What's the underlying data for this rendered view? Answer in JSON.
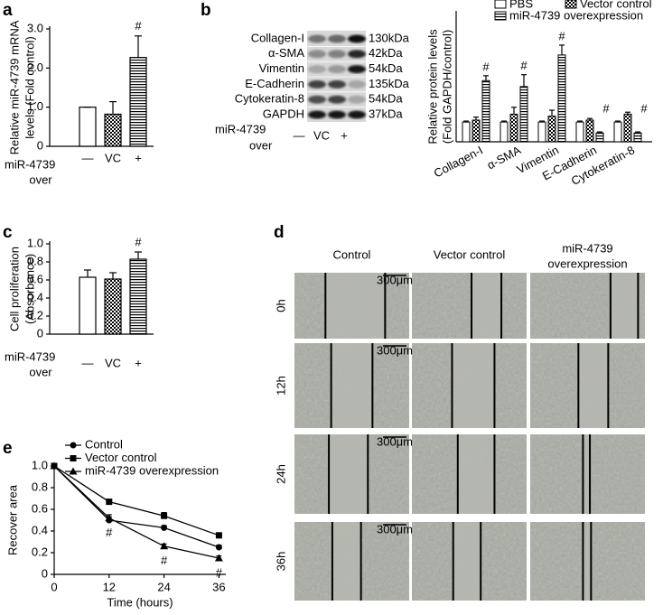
{
  "chart_data": [
    {
      "type": "bar",
      "panel_label": "a",
      "ylabel": [
        "Relative miR-4739 mRNA",
        "levels (Fold control)"
      ],
      "xlabel": [
        "miR-4739",
        "over"
      ],
      "categories": [
        "—",
        "VC",
        "+"
      ],
      "values": [
        1.0,
        0.82,
        2.27
      ],
      "errors": [
        0,
        0.32,
        0.55
      ],
      "patterns": [
        "white",
        "checker",
        "stripes"
      ],
      "value_annotations": [
        null,
        null,
        "#"
      ],
      "ylim": [
        0,
        3
      ],
      "yticks": [
        0,
        {
          "value": 1,
          "label": "1.0"
        },
        {
          "value": 2,
          "label": "2.0"
        },
        {
          "value": 3,
          "label": "3.0"
        }
      ]
    },
    {
      "type": "grouped-bar",
      "panel_label": "b",
      "ylabel": [
        "Relative protein levels",
        "(Fold GAPDH/control)"
      ],
      "categories": [
        "Collagen-I",
        "α-SMA",
        "Vimentin",
        "E-Cadherin",
        "Cytokeratin-8"
      ],
      "series": [
        {
          "name": "PBS",
          "pattern": "white",
          "values": [
            1.0,
            1.0,
            1.0,
            1.0,
            1.0
          ],
          "errors": [
            0.05,
            0.05,
            0.05,
            0.05,
            0.05
          ],
          "annotations": [
            null,
            null,
            null,
            null,
            null
          ]
        },
        {
          "name": "Vector control",
          "pattern": "checker",
          "values": [
            1.1,
            1.4,
            1.3,
            1.1,
            1.4
          ],
          "errors": [
            0.15,
            0.35,
            0.3,
            0.08,
            0.1
          ],
          "annotations": [
            null,
            null,
            null,
            null,
            null
          ]
        },
        {
          "name": "miR-4739 overexpression",
          "pattern": "stripes",
          "values": [
            3.1,
            2.8,
            4.4,
            0.45,
            0.45
          ],
          "errors": [
            0.25,
            0.6,
            0.5,
            0.05,
            0.05
          ],
          "annotations": [
            "#",
            "#",
            "#",
            "#",
            "#"
          ]
        }
      ],
      "ylim": [
        0,
        6.5
      ],
      "legend": "top"
    },
    {
      "type": "bar",
      "panel_label": "c",
      "ylabel": [
        "Cell proliferation",
        "(Absorbance)"
      ],
      "xlabel": [
        "miR-4739",
        "over"
      ],
      "categories": [
        "—",
        "VC",
        "+"
      ],
      "values": [
        0.63,
        0.61,
        0.83
      ],
      "errors": [
        0.08,
        0.07,
        0.08
      ],
      "patterns": [
        "white",
        "checker",
        "stripes"
      ],
      "value_annotations": [
        null,
        null,
        "#"
      ],
      "ylim": [
        0,
        1.0
      ],
      "yticks": [
        0,
        0.2,
        0.4,
        0.6,
        0.8,
        {
          "value": 1.0,
          "label": "1.0"
        }
      ]
    },
    {
      "type": "line",
      "panel_label": "e",
      "xlabel": "Time (hours)",
      "ylabel": "Recover area",
      "x": [
        0,
        12,
        24,
        36
      ],
      "series": [
        {
          "name": "Control",
          "marker": "circle",
          "values": [
            1.0,
            0.5,
            0.43,
            0.25
          ],
          "errors": [
            0.01,
            0.03,
            0.02,
            0.02
          ],
          "annotations": [
            null,
            null,
            null,
            null
          ]
        },
        {
          "name": "Vector control",
          "marker": "square",
          "values": [
            1.0,
            0.67,
            0.54,
            0.36
          ],
          "errors": [
            0.01,
            0.02,
            0.03,
            0.02
          ],
          "annotations": [
            null,
            null,
            null,
            null
          ]
        },
        {
          "name": "miR-4739 overexpression",
          "marker": "triangle",
          "values": [
            1.0,
            0.52,
            0.26,
            0.15
          ],
          "errors": [
            0.01,
            0.03,
            0.02,
            0.02
          ],
          "annotations": [
            null,
            "#",
            "#",
            "#"
          ]
        }
      ],
      "xlim": [
        0,
        37.5
      ],
      "xticks": [
        0,
        12,
        24,
        36
      ],
      "ylim": [
        0,
        1.0
      ],
      "yticks": [
        0,
        0.2,
        0.4,
        0.6,
        0.8,
        {
          "value": 1.0,
          "label": "1.0"
        }
      ],
      "legend": "top-left"
    }
  ],
  "blot": {
    "proteins": [
      {
        "name": "Collagen-I",
        "size": "130kDa"
      },
      {
        "name": "α-SMA",
        "size": "42kDa"
      },
      {
        "name": "Vimentin",
        "size": "54kDa"
      },
      {
        "name": "E-Cadherin",
        "size": "135kDa"
      },
      {
        "name": "Cytokeratin-8",
        "size": "54kDa"
      },
      {
        "name": "GAPDH",
        "size": "37kDa"
      }
    ],
    "lanes": [
      "—",
      "VC",
      "+"
    ],
    "row_label": [
      "miR-4739",
      "over"
    ]
  },
  "wound": {
    "panel_label": "d",
    "columns": [
      [
        "Control"
      ],
      [
        "Vector control"
      ],
      [
        "miR-4739",
        "overexpression"
      ]
    ],
    "rows": [
      "0h",
      "12h",
      "24h",
      "36h"
    ],
    "scale_bar": "300μm"
  }
}
